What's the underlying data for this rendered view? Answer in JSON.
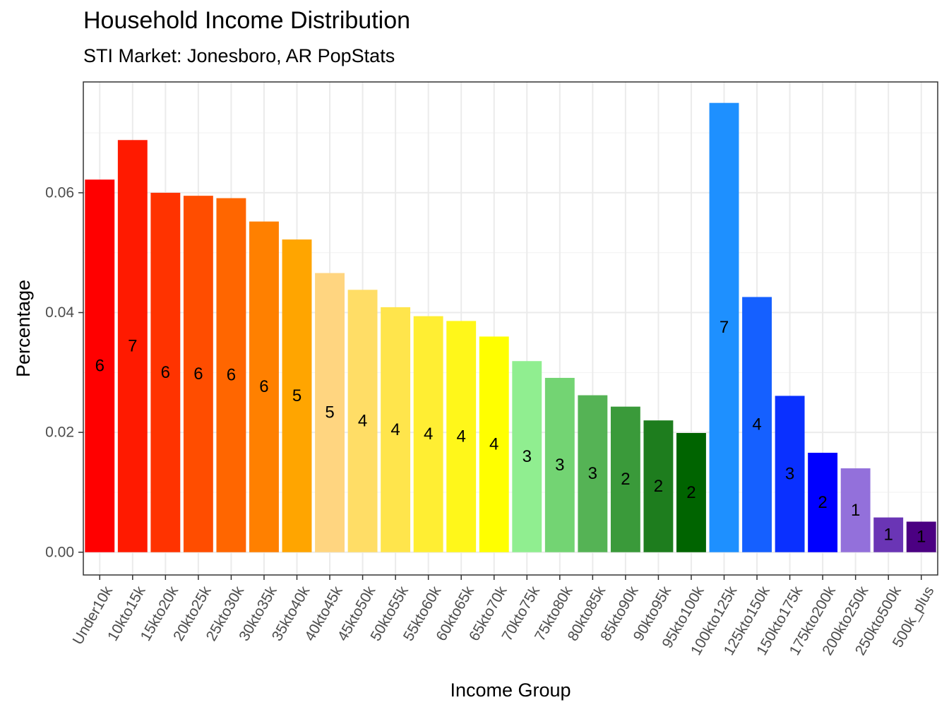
{
  "chart_data": {
    "type": "bar",
    "title": "Household Income Distribution",
    "subtitle": "STI Market: Jonesboro, AR PopStats",
    "xlabel": "Income Group",
    "ylabel": "Percentage",
    "ylim": [
      -0.0038,
      0.0785
    ],
    "yticks": [
      0.0,
      0.02,
      0.04,
      0.06
    ],
    "ytick_labels": [
      "0.00",
      "0.02",
      "0.04",
      "0.06"
    ],
    "grid": true,
    "legend": "none",
    "categories": [
      "Under10k",
      "10kto15k",
      "15kto20k",
      "20kto25k",
      "25kto30k",
      "30kto35k",
      "35kto40k",
      "40kto45k",
      "45kto50k",
      "50kto55k",
      "55kto60k",
      "60kto65k",
      "65kto70k",
      "70kto75k",
      "75kto80k",
      "80kto85k",
      "85kto90k",
      "90kto95k",
      "95kto100k",
      "100kto125k",
      "125kto150k",
      "150kto175k",
      "175kto200k",
      "200kto250k",
      "250kto500k",
      "500k_plus"
    ],
    "values": [
      0.0622,
      0.0688,
      0.06,
      0.0595,
      0.0591,
      0.0552,
      0.0522,
      0.0466,
      0.0438,
      0.0409,
      0.0394,
      0.0386,
      0.036,
      0.0319,
      0.0291,
      0.0262,
      0.0243,
      0.022,
      0.0199,
      0.075,
      0.0426,
      0.0261,
      0.0166,
      0.014,
      0.0058,
      0.0051
    ],
    "data_labels": [
      "6",
      "7",
      "6",
      "6",
      "6",
      "6",
      "5",
      "5",
      "4",
      "4",
      "4",
      "4",
      "4",
      "3",
      "3",
      "3",
      "2",
      "2",
      "2",
      "7",
      "4",
      "3",
      "2",
      "1",
      "1",
      "1"
    ],
    "colors": [
      "#FF0000",
      "#FF1A00",
      "#FF3300",
      "#FF4D00",
      "#FF6600",
      "#FF8000",
      "#FFA500",
      "#FFD580",
      "#FFDD66",
      "#FFE54C",
      "#FFEE33",
      "#FFF71A",
      "#FFFF00",
      "#90EE90",
      "#73D473",
      "#55B355",
      "#3A9A3A",
      "#1E7D1E",
      "#006400",
      "#1E90FF",
      "#1560FF",
      "#0A30FF",
      "#0000FF",
      "#9370DB",
      "#6A35B5",
      "#4B0082"
    ]
  }
}
